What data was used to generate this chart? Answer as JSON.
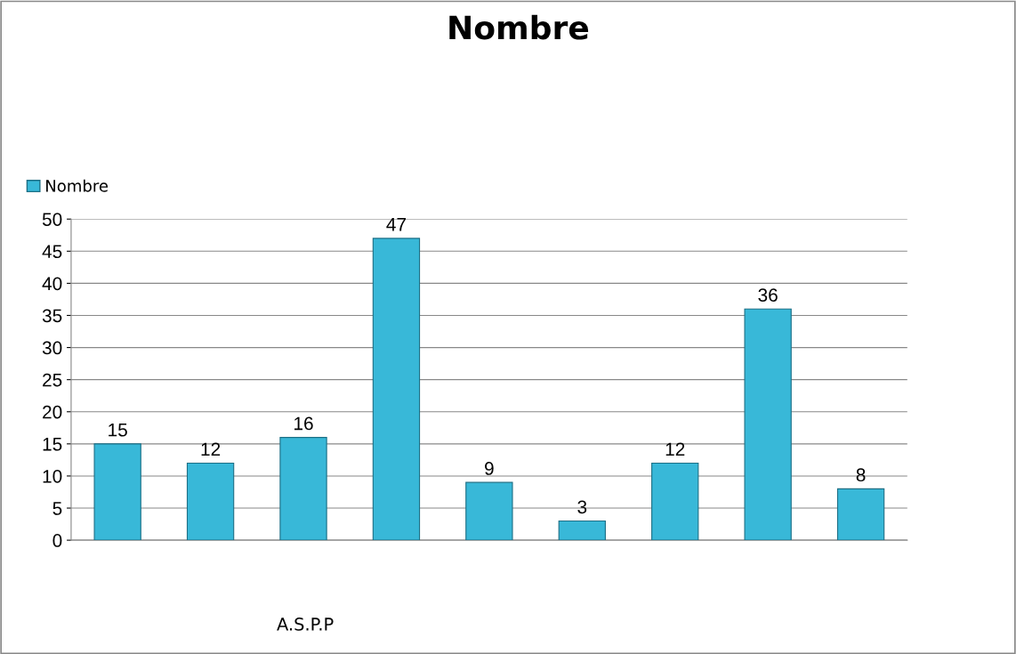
{
  "chart_data": {
    "type": "bar",
    "title": "Nombre",
    "xlabel": "A.S.P.P",
    "categories": [
      null,
      null,
      null,
      null,
      null,
      null,
      null,
      null,
      null
    ],
    "series": [
      {
        "name": "Nombre",
        "color": "#38b8d8",
        "values": [
          15,
          12,
          16,
          47,
          9,
          3,
          12,
          36,
          8
        ]
      }
    ],
    "ylim": [
      0,
      50
    ],
    "yticks": [
      0,
      5,
      10,
      15,
      20,
      25,
      30,
      35,
      40,
      45,
      50
    ],
    "grid": "y",
    "legend": "top left",
    "data_labels": true
  }
}
